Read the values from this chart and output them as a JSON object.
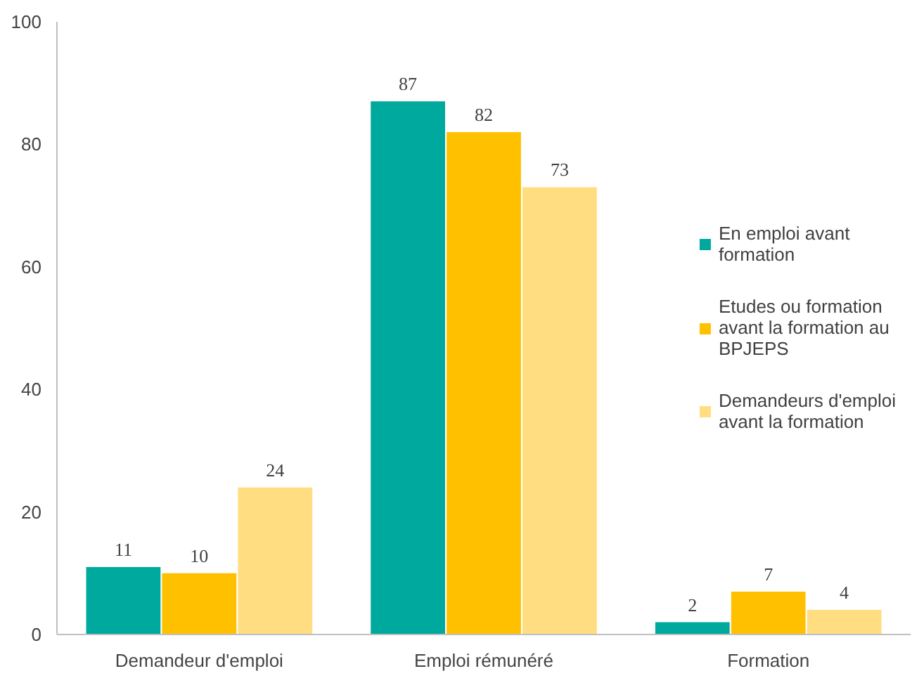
{
  "chart_data": {
    "type": "bar",
    "categories": [
      "Demandeur d'emploi",
      "Emploi rémunéré",
      "Formation"
    ],
    "series": [
      {
        "name": "En emploi avant formation",
        "color": "#00a99d",
        "values": [
          11,
          87,
          2
        ]
      },
      {
        "name": "Etudes ou formation avant la formation au BPJEPS",
        "color": "#ffc000",
        "values": [
          10,
          82,
          7
        ]
      },
      {
        "name": "Demandeurs d'emploi avant la formation",
        "color": "#ffdd80",
        "values": [
          24,
          73,
          4
        ]
      }
    ],
    "ylim": [
      0,
      100
    ],
    "yticks": [
      0,
      20,
      40,
      60,
      80,
      100
    ],
    "grid": false,
    "legend": "right",
    "data_labels": true
  }
}
